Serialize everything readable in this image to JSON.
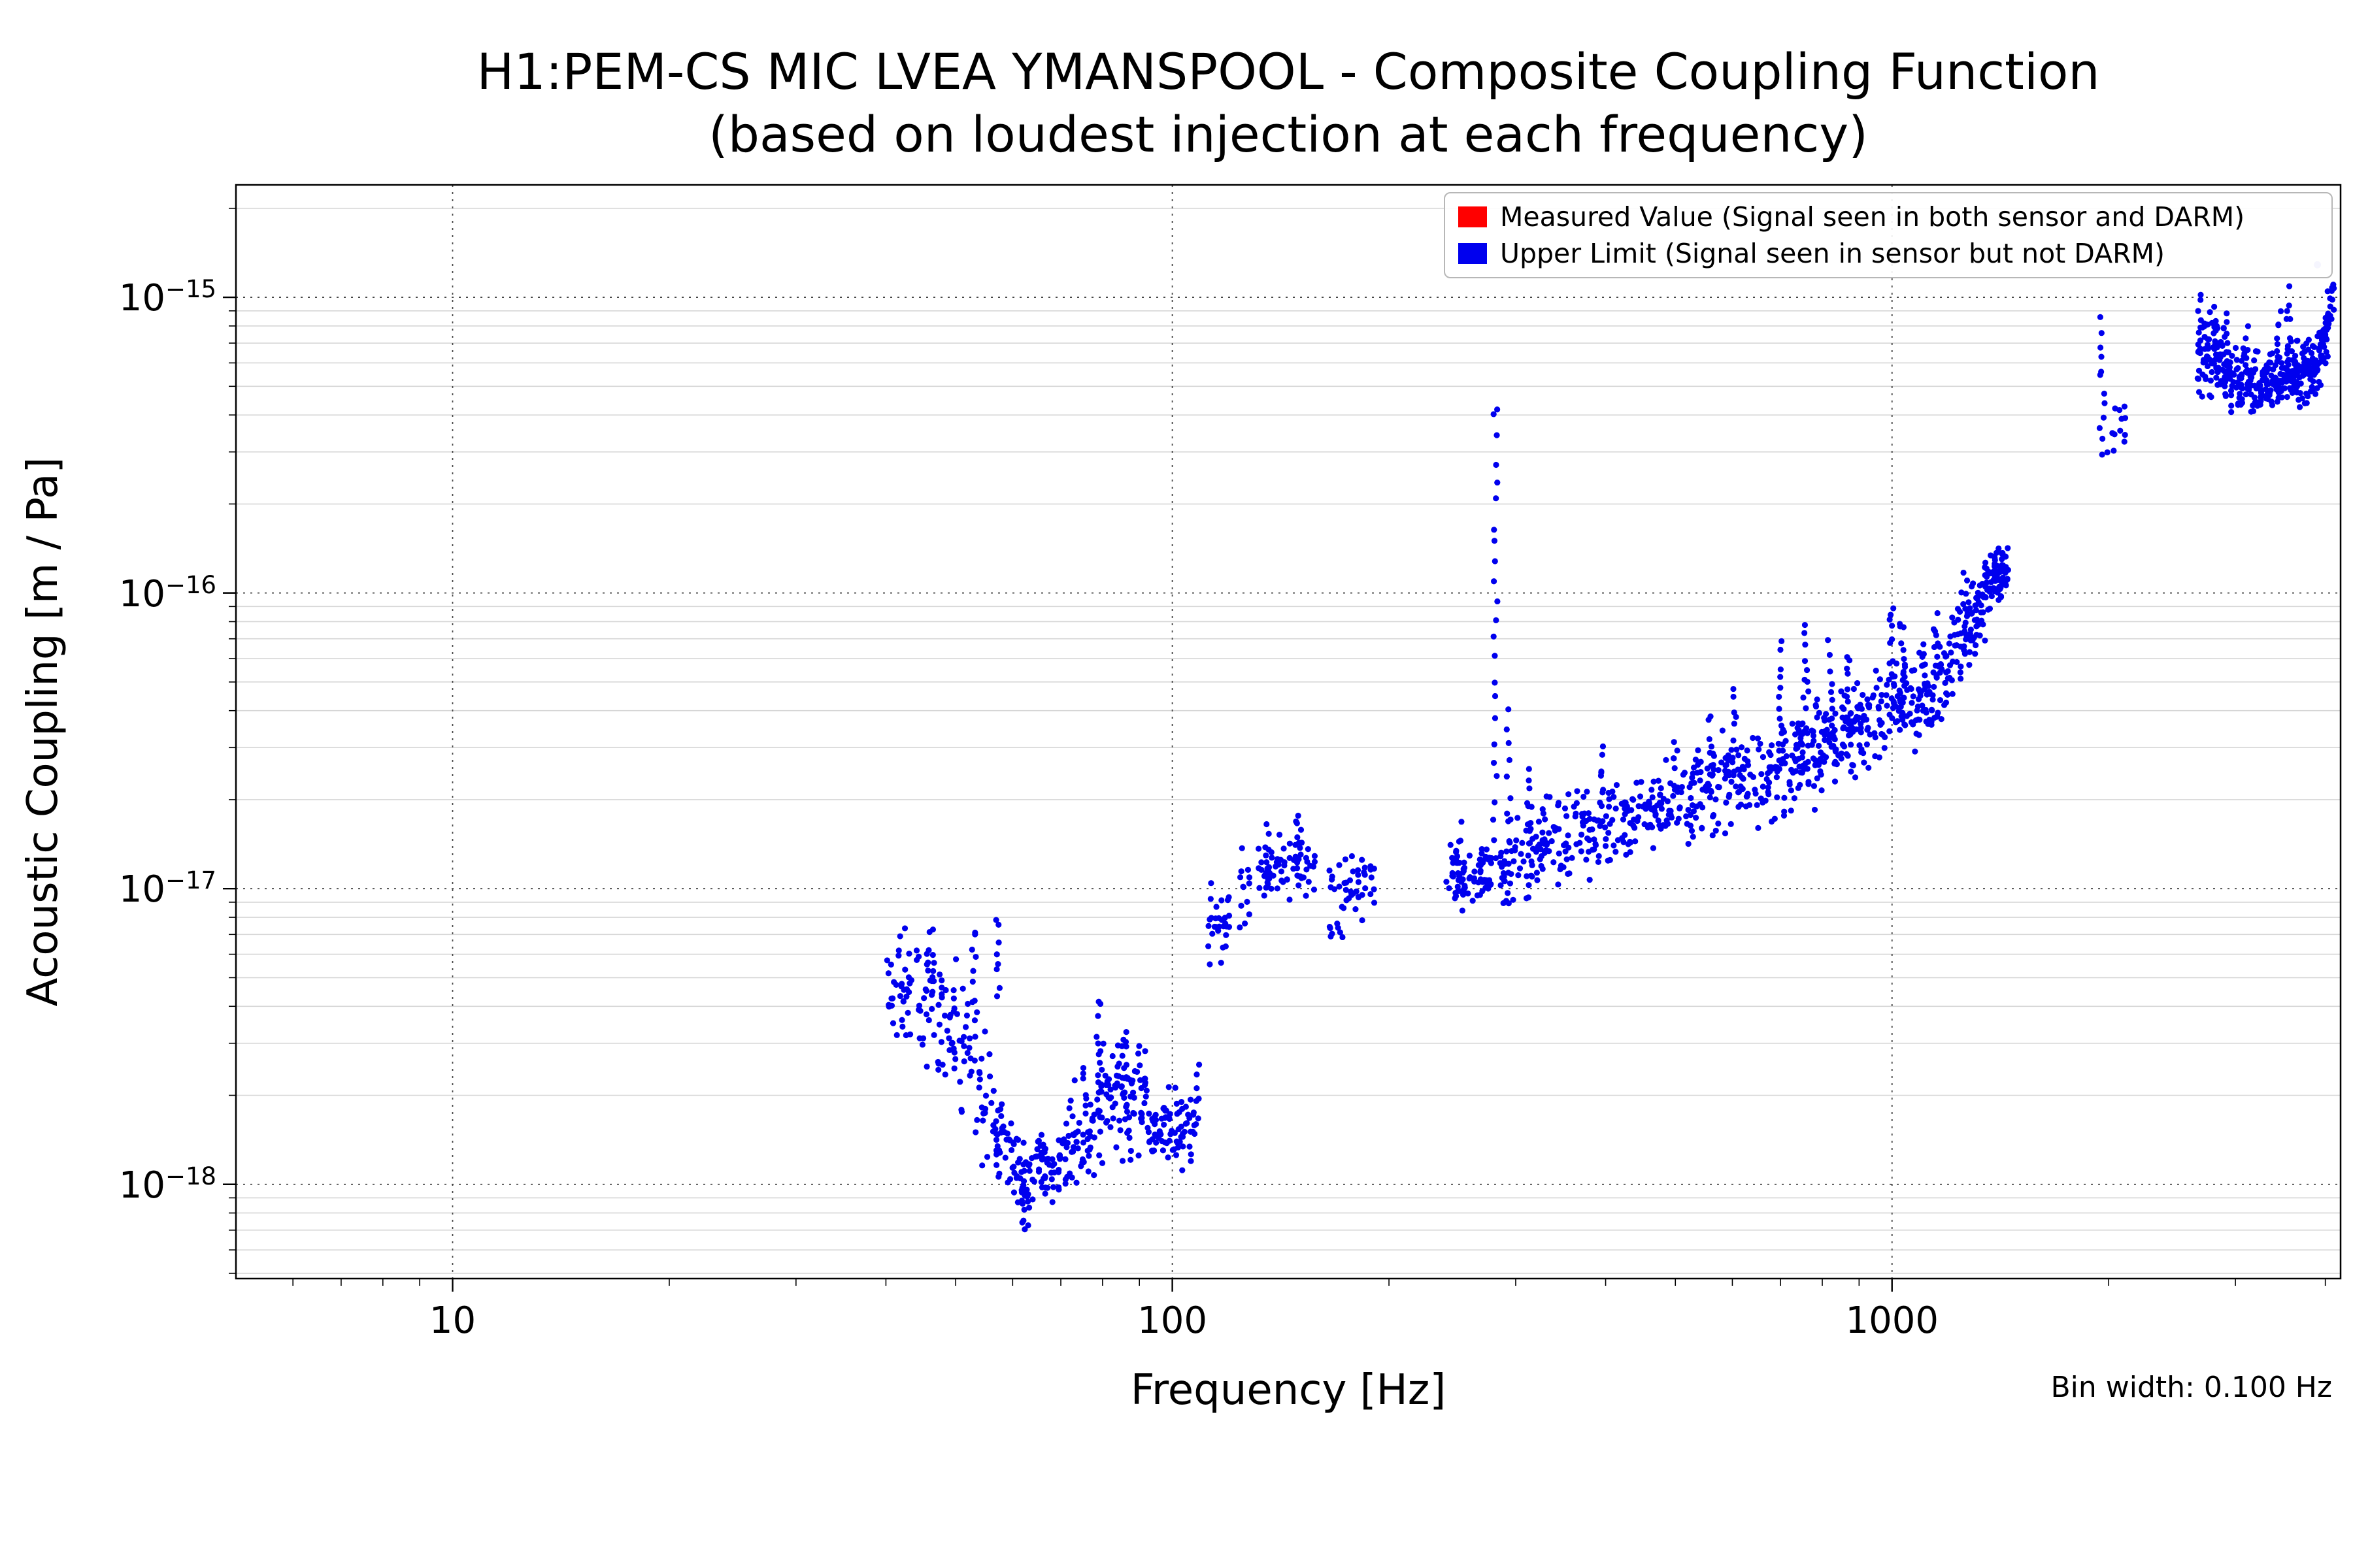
{
  "chart_data": {
    "type": "scatter",
    "title": "H1:PEM-CS MIC LVEA YMANSPOOL - Composite Coupling Function",
    "subtitle": "(based on loudest injection at each frequency)",
    "xlabel": "Frequency [Hz]",
    "ylabel": "Acoustic Coupling [m / Pa]",
    "annotation": "Bin width: 0.100 Hz",
    "xscale": "log",
    "yscale": "log",
    "xlim": [
      5,
      4200
    ],
    "ylim": [
      4.8e-19,
      2.4e-15
    ],
    "grid": true,
    "legend_position": "upper right",
    "marker_color": "#0000ee",
    "light_color": "#9a9af0",
    "x_ticks": [
      {
        "value": 10,
        "label": "10"
      },
      {
        "value": 100,
        "label": "100"
      },
      {
        "value": 1000,
        "label": "1000"
      }
    ],
    "y_ticks": [
      {
        "value": 1e-15,
        "base": "10",
        "sup": "−15"
      },
      {
        "value": 1e-16,
        "base": "10",
        "sup": "−16"
      },
      {
        "value": 1e-17,
        "base": "10",
        "sup": "−17"
      },
      {
        "value": 1e-18,
        "base": "10",
        "sup": "−18"
      }
    ],
    "legend": [
      {
        "label": "Measured Value (Signal seen in both sensor and DARM)",
        "color": "#ff0000",
        "name": "measured-value"
      },
      {
        "label": "Upper Limit (Signal seen in sensor but not DARM)",
        "color": "#0000ee",
        "name": "upper-limit"
      }
    ],
    "series_names": [
      "Upper Limit (Signal seen in sensor but not DARM)"
    ],
    "bands_format": "[freq_start_Hz, freq_end_Hz, log10y_start, log10y_end, log10y_scatter_sd, n_points]",
    "bands": [
      [
        40,
        48,
        -17.3,
        -17.4,
        0.1,
        70
      ],
      [
        48,
        56,
        -17.42,
        -17.72,
        0.12,
        60
      ],
      [
        56,
        64,
        -17.8,
        -18.0,
        0.07,
        70
      ],
      [
        64,
        72,
        -17.97,
        -17.88,
        0.06,
        60
      ],
      [
        72,
        80,
        -17.88,
        -17.72,
        0.09,
        60
      ],
      [
        80,
        92,
        -17.7,
        -17.68,
        0.1,
        80
      ],
      [
        92,
        108,
        -17.8,
        -17.82,
        0.06,
        80
      ],
      [
        112,
        120,
        -17.15,
        -17.1,
        0.07,
        30
      ],
      [
        124,
        140,
        -17.0,
        -16.93,
        0.06,
        40
      ],
      [
        140,
        158,
        -16.93,
        -16.9,
        0.06,
        40
      ],
      [
        165,
        180,
        -17.08,
        -17.0,
        0.08,
        30
      ],
      [
        180,
        192,
        -17.02,
        -16.98,
        0.05,
        20
      ],
      [
        240,
        278,
        -16.97,
        -16.94,
        0.05,
        70
      ],
      [
        285,
        330,
        -16.95,
        -16.85,
        0.07,
        70
      ],
      [
        330,
        420,
        -16.85,
        -16.78,
        0.07,
        90
      ],
      [
        420,
        520,
        -16.78,
        -16.7,
        0.07,
        90
      ],
      [
        520,
        640,
        -16.7,
        -16.6,
        0.08,
        100
      ],
      [
        640,
        780,
        -16.62,
        -16.52,
        0.08,
        100
      ],
      [
        780,
        900,
        -16.55,
        -16.45,
        0.08,
        90
      ],
      [
        900,
        1050,
        -16.45,
        -16.35,
        0.07,
        80
      ],
      [
        1050,
        1200,
        -16.4,
        -16.28,
        0.08,
        80
      ],
      [
        1200,
        1350,
        -16.24,
        -16.0,
        0.07,
        80
      ],
      [
        1350,
        1450,
        -15.97,
        -15.92,
        0.04,
        70
      ],
      [
        1990,
        2120,
        -15.47,
        -15.42,
        0.05,
        12
      ],
      [
        2660,
        2900,
        -15.22,
        -15.2,
        0.07,
        70
      ],
      [
        2900,
        3250,
        -15.28,
        -15.3,
        0.05,
        90
      ],
      [
        3250,
        3600,
        -15.3,
        -15.25,
        0.04,
        90
      ],
      [
        3600,
        3950,
        -15.27,
        -15.22,
        0.05,
        100
      ],
      [
        3950,
        4120,
        -15.18,
        -15.0,
        0.05,
        40
      ]
    ],
    "spikes_format": "[freq_Hz, log10y_min, log10y_max, n_points, freq_jitter_fraction]",
    "spikes": [
      [
        46,
        -17.45,
        -17.15,
        10,
        0.012
      ],
      [
        53,
        -17.4,
        -17.12,
        8,
        0.012
      ],
      [
        57,
        -17.35,
        -17.1,
        8,
        0.012
      ],
      [
        62,
        -18.16,
        -17.98,
        8,
        0.012
      ],
      [
        79,
        -17.8,
        -17.35,
        12,
        0.012
      ],
      [
        86,
        -17.68,
        -17.48,
        8,
        0.012
      ],
      [
        108,
        -17.8,
        -17.62,
        8,
        0.012
      ],
      [
        136,
        -16.95,
        -16.8,
        6,
        0.01
      ],
      [
        150,
        -16.9,
        -16.76,
        8,
        0.01
      ],
      [
        250,
        -16.95,
        -16.8,
        8,
        0.01
      ],
      [
        281,
        -16.9,
        -15.35,
        24,
        0.007
      ],
      [
        293,
        -16.9,
        -16.4,
        10,
        0.007
      ],
      [
        312,
        -16.85,
        -16.6,
        8,
        0.008
      ],
      [
        395,
        -16.8,
        -16.52,
        10,
        0.008
      ],
      [
        500,
        -16.7,
        -16.48,
        8,
        0.008
      ],
      [
        560,
        -16.65,
        -16.4,
        8,
        0.008
      ],
      [
        605,
        -16.62,
        -16.33,
        10,
        0.008
      ],
      [
        700,
        -16.55,
        -16.18,
        12,
        0.008
      ],
      [
        760,
        -16.52,
        -16.1,
        12,
        0.008
      ],
      [
        820,
        -16.5,
        -16.18,
        10,
        0.008
      ],
      [
        872,
        -16.45,
        -16.22,
        10,
        0.008
      ],
      [
        1000,
        -16.38,
        -16.05,
        14,
        0.01
      ],
      [
        1032,
        -16.36,
        -16.08,
        10,
        0.008
      ],
      [
        1150,
        -16.33,
        -16.08,
        10,
        0.008
      ],
      [
        1265,
        -16.18,
        -15.93,
        8,
        0.008
      ],
      [
        1960,
        -15.52,
        -15.07,
        12,
        0.01
      ],
      [
        2680,
        -15.28,
        -14.98,
        10,
        0.008
      ],
      [
        2800,
        -15.22,
        -15.05,
        8,
        0.008
      ],
      [
        2910,
        -15.25,
        -15.08,
        8,
        0.008
      ],
      [
        3100,
        -15.3,
        -15.1,
        8,
        0.008
      ],
      [
        3450,
        -15.28,
        -15.04,
        8,
        0.008
      ],
      [
        3560,
        -15.28,
        -14.97,
        10,
        0.008
      ]
    ],
    "light_points": [
      [
        3900,
        -14.89
      ]
    ]
  }
}
